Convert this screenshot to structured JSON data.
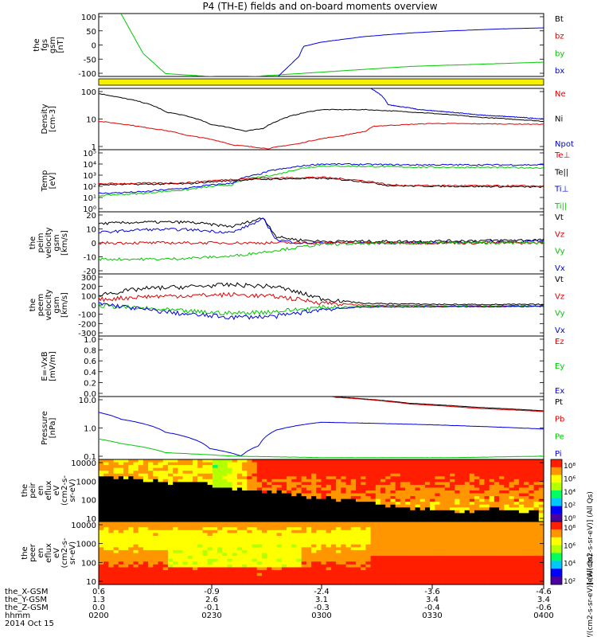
{
  "title": "P4 (TH-E) fields and on-board moments overview",
  "colors": {
    "black": "#000000",
    "red": "#e00000",
    "green": "#00c800",
    "blue": "#0000e0",
    "yellow": "#f5f000",
    "spec_black": "#000000"
  },
  "xaxis": {
    "rows": [
      {
        "label": "the_X-GSM",
        "ticks": [
          "0.6",
          "-0.9",
          "-2.4",
          "-3.6",
          "-4.6"
        ]
      },
      {
        "label": "the_Y-GSM",
        "ticks": [
          "1.3",
          "2.6",
          "3.1",
          "3.4",
          "3.4"
        ]
      },
      {
        "label": "the_Z-GSM",
        "ticks": [
          "0.0",
          "-0.1",
          "-0.3",
          "-0.4",
          "-0.6"
        ]
      },
      {
        "label": "hhmm",
        "ticks": [
          "0200",
          "0230",
          "0300",
          "0330",
          "0400"
        ]
      }
    ],
    "date": "2014 Oct 15"
  },
  "panels": [
    {
      "id": "fgs",
      "ylabel": [
        "the",
        "fgs",
        "gsm",
        "[nT]"
      ],
      "ticks": [
        "100",
        "50",
        "0",
        "-50",
        "-100"
      ],
      "legend": [
        {
          "t": "Bt",
          "c": "black"
        },
        {
          "t": "bz",
          "c": "red"
        },
        {
          "t": "by",
          "c": "green"
        },
        {
          "t": "bx",
          "c": "blue"
        }
      ]
    },
    {
      "id": "density",
      "ylabel": [
        "Density",
        "[cm-3]"
      ],
      "ticks": [
        "100",
        "10",
        "1"
      ],
      "legend": [
        {
          "t": "Ne",
          "c": "red"
        },
        {
          "t": "Ni",
          "c": "black"
        },
        {
          "t": "Npot",
          "c": "blue"
        }
      ]
    },
    {
      "id": "temp",
      "ylabel": [
        "Temp",
        "[eV]"
      ],
      "ticks": [
        "10⁵",
        "10⁴",
        "10³",
        "10²",
        "10¹",
        "10⁰"
      ],
      "legend": [
        {
          "t": "Te⊥",
          "c": "red"
        },
        {
          "t": "Te||",
          "c": "black"
        },
        {
          "t": "Ti⊥",
          "c": "blue"
        },
        {
          "t": "Ti||",
          "c": "green"
        }
      ]
    },
    {
      "id": "peim",
      "ylabel": [
        "the",
        "peim",
        "velocity",
        "gsm",
        "[km/s]"
      ],
      "ticks": [
        "20",
        "10",
        "0",
        "-10",
        "-20"
      ],
      "legend": [
        {
          "t": "Vt",
          "c": "black"
        },
        {
          "t": "Vz",
          "c": "red"
        },
        {
          "t": "Vy",
          "c": "green"
        },
        {
          "t": "Vx",
          "c": "blue"
        }
      ]
    },
    {
      "id": "peem",
      "ylabel": [
        "the",
        "peem",
        "velocity",
        "gsm",
        "[km/s]"
      ],
      "ticks": [
        "300",
        "200",
        "100",
        "0",
        "-100",
        "-200",
        "-300"
      ],
      "legend": [
        {
          "t": "Vt",
          "c": "black"
        },
        {
          "t": "Vz",
          "c": "red"
        },
        {
          "t": "Vy",
          "c": "green"
        },
        {
          "t": "Vx",
          "c": "blue"
        }
      ]
    },
    {
      "id": "exb",
      "ylabel": [
        "E=-VxB",
        "[mV/m]"
      ],
      "ticks": [
        "1.0",
        "0.8",
        "0.6",
        "0.4",
        "0.2",
        "0.0"
      ],
      "legend": [
        {
          "t": "Ez",
          "c": "red"
        },
        {
          "t": "Ey",
          "c": "green"
        },
        {
          "t": "Ex",
          "c": "blue"
        }
      ]
    },
    {
      "id": "pressure",
      "ylabel": [
        "Pressure",
        "[nPa]"
      ],
      "ticks": [
        "10.0",
        "1.0",
        "0.1"
      ],
      "legend": [
        {
          "t": "Pt",
          "c": "black"
        },
        {
          "t": "Pb",
          "c": "red"
        },
        {
          "t": "Pe",
          "c": "green"
        },
        {
          "t": "Pi",
          "c": "blue"
        }
      ]
    },
    {
      "id": "peir",
      "ylabel": [
        "the",
        "peir",
        "en",
        "eflux",
        "eV",
        "(cm2-s-",
        "sr-eV)"
      ],
      "ticks": [
        "10000",
        "1000",
        "100",
        "10"
      ],
      "colorbar": [
        "10⁸",
        "10⁶",
        "10⁴",
        "10²",
        "10⁰"
      ],
      "cblabel": "[eV/(cm2-s-sr-eV)] (All Qs)"
    },
    {
      "id": "peer",
      "ylabel": [
        "the",
        "peer",
        "en",
        "eflux",
        "eV",
        "(cm2-s-",
        "sr-eV)"
      ],
      "ticks": [
        "10000",
        "1000",
        "100",
        "10"
      ],
      "colorbar": [
        "10⁸",
        "10⁶",
        "10⁴",
        "10²"
      ],
      "cblabel": "[eV/(cm2-s-sr-eV)] (All Qs)"
    }
  ],
  "chart_data": [
    {
      "type": "line",
      "panel": "fgs",
      "ylim": [
        -120,
        100
      ],
      "xlim": [
        "02:00",
        "04:00"
      ],
      "series": [
        {
          "name": "by",
          "color": "green",
          "x": [
            0,
            0.05,
            0.1,
            0.15,
            0.3,
            0.5,
            0.7,
            0.9,
            1.0
          ],
          "y": [
            300,
            100,
            -40,
            -110,
            -125,
            -105,
            -85,
            -75,
            -70
          ]
        },
        {
          "name": "bx",
          "color": "blue",
          "x": [
            0,
            0.4,
            0.45,
            0.46,
            0.5,
            0.6,
            0.7,
            0.8,
            0.9,
            1.0
          ],
          "y": [
            -125,
            -125,
            -50,
            -15,
            0,
            20,
            32,
            40,
            46,
            50
          ]
        }
      ]
    },
    {
      "type": "line",
      "panel": "density",
      "ylog": true,
      "ylim": [
        0.5,
        200
      ],
      "series": [
        {
          "name": "Ni",
          "color": "black",
          "x": [
            0,
            0.05,
            0.15,
            0.25,
            0.33,
            0.37,
            0.4,
            0.5,
            0.6,
            0.7,
            0.85,
            1.0
          ],
          "y": [
            120,
            80,
            20,
            6,
            3,
            4,
            8,
            25,
            25,
            20,
            12,
            8
          ]
        },
        {
          "name": "Ne",
          "color": "red",
          "x": [
            0,
            0.1,
            0.2,
            0.3,
            0.38,
            0.45,
            0.55,
            0.6,
            0.62,
            0.75,
            1.0
          ],
          "y": [
            8,
            4.5,
            2,
            0.8,
            0.55,
            0.9,
            2,
            3,
            5,
            6.5,
            6
          ]
        },
        {
          "name": "Npot",
          "color": "blue",
          "x": [
            0.61,
            0.65,
            0.72,
            0.85,
            1.0
          ],
          "y": [
            200,
            40,
            25,
            15,
            10
          ]
        }
      ]
    },
    {
      "type": "line",
      "panel": "temp",
      "ylog": true,
      "ylim": [
        1,
        100000
      ],
      "series": [
        {
          "name": "Ti||",
          "color": "green",
          "x": [
            0,
            0.1,
            0.2,
            0.3,
            0.36,
            0.4,
            0.42,
            0.5,
            0.7,
            1.0
          ],
          "y": [
            20,
            30,
            60,
            150,
            600,
            1000,
            1500,
            5000,
            4000,
            3500
          ]
        },
        {
          "name": "Ti⊥",
          "color": "blue",
          "x": [
            0,
            0.1,
            0.2,
            0.3,
            0.36,
            0.4,
            0.42,
            0.5,
            0.7,
            1.0
          ],
          "y": [
            30,
            40,
            80,
            200,
            1000,
            2500,
            3000,
            7000,
            6000,
            6000
          ]
        },
        {
          "name": "Te||",
          "color": "black",
          "x": [
            0,
            0.2,
            0.35,
            0.5,
            0.6,
            0.65,
            0.7,
            1.0
          ],
          "y": [
            150,
            180,
            400,
            500,
            250,
            130,
            120,
            100
          ]
        },
        {
          "name": "Te⊥",
          "color": "red",
          "x": [
            0,
            0.2,
            0.35,
            0.5,
            0.6,
            0.65,
            0.7,
            1.0
          ],
          "y": [
            180,
            220,
            500,
            600,
            300,
            150,
            130,
            120
          ]
        }
      ]
    },
    {
      "type": "line",
      "panel": "peim",
      "ylim": [
        -20,
        22
      ],
      "series": [
        {
          "name": "Vt",
          "color": "black",
          "x": [
            0,
            0.1,
            0.2,
            0.3,
            0.37,
            0.4,
            0.45,
            0.5,
            0.7,
            1.0
          ],
          "y": [
            14,
            15,
            15,
            12,
            18,
            5,
            3,
            2,
            2,
            3
          ]
        },
        {
          "name": "Vx",
          "color": "blue",
          "x": [
            0,
            0.1,
            0.2,
            0.3,
            0.37,
            0.4,
            0.45,
            0.5,
            0.7,
            1.0
          ],
          "y": [
            8,
            10,
            10,
            8,
            17,
            3,
            1,
            1,
            1,
            2
          ]
        },
        {
          "name": "Vz",
          "color": "red",
          "x": [
            0,
            0.5,
            1.0
          ],
          "y": [
            1,
            1,
            1
          ]
        },
        {
          "name": "Vy",
          "color": "green",
          "x": [
            0,
            0.15,
            0.3,
            0.4,
            0.5,
            0.7,
            1.0
          ],
          "y": [
            -10,
            -10,
            -8,
            -4,
            0,
            1,
            1
          ]
        }
      ]
    },
    {
      "type": "line",
      "panel": "peem",
      "ylim": [
        -300,
        330
      ],
      "series": [
        {
          "name": "Vt",
          "color": "black",
          "x": [
            0,
            0.1,
            0.2,
            0.3,
            0.4,
            0.5,
            0.6,
            0.8,
            1.0
          ],
          "y": [
            120,
            180,
            200,
            220,
            200,
            80,
            30,
            20,
            20
          ]
        },
        {
          "name": "Vz",
          "color": "red",
          "x": [
            0,
            0.1,
            0.2,
            0.3,
            0.4,
            0.5,
            0.6,
            1.0
          ],
          "y": [
            70,
            100,
            110,
            120,
            100,
            40,
            10,
            5
          ]
        },
        {
          "name": "Vy",
          "color": "green",
          "x": [
            0,
            0.1,
            0.2,
            0.3,
            0.4,
            0.5,
            0.6,
            1.0
          ],
          "y": [
            10,
            -20,
            -50,
            -70,
            -50,
            -10,
            0,
            0
          ]
        },
        {
          "name": "Vx",
          "color": "blue",
          "x": [
            0,
            0.1,
            0.2,
            0.3,
            0.4,
            0.5,
            0.6,
            1.0
          ],
          "y": [
            30,
            -30,
            -80,
            -110,
            -100,
            -30,
            -5,
            0
          ]
        }
      ]
    },
    {
      "type": "line",
      "panel": "exb",
      "ylim": [
        0,
        1
      ],
      "series": []
    },
    {
      "type": "line",
      "panel": "pressure",
      "ylog": true,
      "ylim": [
        0.05,
        30
      ],
      "series": [
        {
          "name": "Pt",
          "color": "black",
          "x": [
            0.52,
            0.7,
            0.85,
            1.0
          ],
          "y": [
            30,
            15,
            10,
            7
          ]
        },
        {
          "name": "Pb",
          "color": "red",
          "x": [
            0.53,
            0.7,
            0.85,
            1.0
          ],
          "y": [
            28,
            14,
            9,
            6.5
          ]
        },
        {
          "name": "Pi",
          "color": "blue",
          "x": [
            0,
            0.05,
            0.15,
            0.25,
            0.32,
            0.36,
            0.4,
            0.5,
            0.7,
            1.0
          ],
          "y": [
            6,
            3,
            0.8,
            0.15,
            0.07,
            0.2,
            1.0,
            2.2,
            1.8,
            1.1
          ]
        },
        {
          "name": "Pe",
          "color": "green",
          "x": [
            0,
            0.05,
            0.15,
            0.3,
            0.5,
            0.8,
            1.0
          ],
          "y": [
            0.4,
            0.25,
            0.1,
            0.07,
            0.06,
            0.06,
            0.07
          ]
        }
      ]
    },
    {
      "type": "heatmap",
      "panel": "peir",
      "ylog": true,
      "ylim": [
        6,
        25000
      ],
      "zlog": true,
      "zlim": [
        1,
        100000000
      ]
    },
    {
      "type": "heatmap",
      "panel": "peer",
      "ylog": true,
      "ylim": [
        6,
        25000
      ],
      "zlog": true,
      "zlim": [
        1,
        100000000
      ]
    }
  ]
}
